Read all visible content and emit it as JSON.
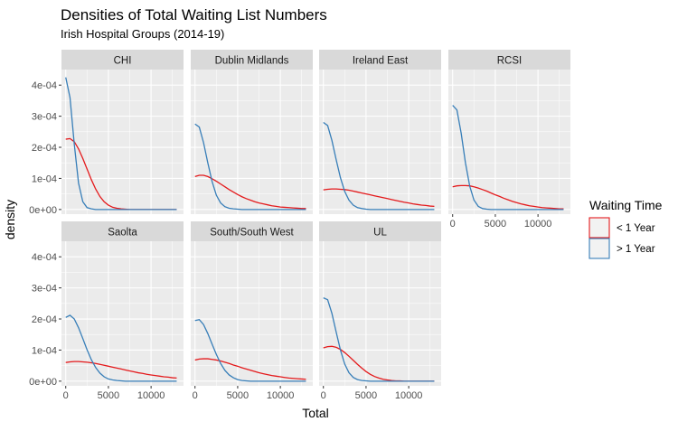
{
  "chart_data": {
    "type": "line",
    "title": "Densities of Total Waiting List Numbers",
    "subtitle": "Irish Hospital Groups (2014-19)",
    "xlabel": "Total",
    "ylabel": "density",
    "xlim": [
      -500,
      13800
    ],
    "ylim": [
      -1.5e-05,
      0.00045
    ],
    "x_ticks": [
      0,
      5000,
      10000
    ],
    "y_ticks": [
      0,
      0.0001,
      0.0002,
      0.0003,
      0.0004
    ],
    "y_tick_labels": [
      "0e+00",
      "1e-04",
      "2e-04",
      "3e-04",
      "4e-04"
    ],
    "grid": true,
    "legend": {
      "title": "Waiting Time",
      "position": "right",
      "entries": [
        {
          "label": "< 1 Year",
          "color": "#E41A1C"
        },
        {
          "label": "> 1 Year",
          "color": "#377EB8"
        }
      ]
    },
    "colors": {
      "panel_bg": "#EBEBEB",
      "strip_bg": "#D9D9D9",
      "grid": "#FFFFFF",
      "under_1_year": "#E41A1C",
      "over_1_year": "#377EB8"
    },
    "x": [
      0,
      500,
      1000,
      1500,
      2000,
      2500,
      3000,
      3500,
      4000,
      4500,
      5000,
      5500,
      6000,
      6500,
      7000,
      7500,
      8000,
      8500,
      9000,
      9500,
      10000,
      10500,
      11000,
      11500,
      12000,
      12500,
      13000
    ],
    "panels": [
      {
        "name": "CHI",
        "series": [
          {
            "name": "< 1 Year",
            "values": [
              0.000226,
              0.000228,
              0.000218,
              0.000195,
              0.000164,
              0.00013,
              9.6e-05,
              6.6e-05,
              4.2e-05,
              2.5e-05,
              1.4e-05,
              7e-06,
              4e-06,
              2e-06,
              1e-06,
              0,
              0,
              0,
              0,
              0,
              0,
              0,
              0,
              0,
              0,
              0,
              0
            ]
          },
          {
            "name": "> 1 Year",
            "values": [
              0.000425,
              0.00036,
              0.00021,
              8.5e-05,
              2.5e-05,
              6e-06,
              2e-06,
              0,
              0,
              0,
              0,
              0,
              0,
              0,
              0,
              0,
              0,
              0,
              0,
              0,
              0,
              0,
              0,
              0,
              0,
              0,
              0
            ]
          }
        ]
      },
      {
        "name": "Dublin Midlands",
        "series": [
          {
            "name": "< 1 Year",
            "values": [
              0.000106,
              0.00011,
              0.00011,
              0.000106,
              9.9e-05,
              9.1e-05,
              8.2e-05,
              7.3e-05,
              6.4e-05,
              5.6e-05,
              4.8e-05,
              4.1e-05,
              3.5e-05,
              3e-05,
              2.5e-05,
              2.1e-05,
              1.8e-05,
              1.5e-05,
              1.2e-05,
              1e-05,
              8e-06,
              7e-06,
              6e-06,
              5e-06,
              4e-06,
              3e-06,
              3e-06
            ]
          },
          {
            "name": "> 1 Year",
            "values": [
              0.000275,
              0.000265,
              0.000215,
              0.00015,
              9e-05,
              4.6e-05,
              2.1e-05,
              9e-06,
              4e-06,
              2e-06,
              1e-06,
              0,
              0,
              0,
              0,
              0,
              0,
              0,
              0,
              0,
              0,
              0,
              0,
              0,
              0,
              0,
              0
            ]
          }
        ]
      },
      {
        "name": "Ireland East",
        "series": [
          {
            "name": "< 1 Year",
            "values": [
              6.3e-05,
              6.5e-05,
              6.6e-05,
              6.6e-05,
              6.5e-05,
              6.4e-05,
              6.2e-05,
              5.9e-05,
              5.6e-05,
              5.3e-05,
              5e-05,
              4.7e-05,
              4.4e-05,
              4.1e-05,
              3.8e-05,
              3.5e-05,
              3.2e-05,
              2.9e-05,
              2.6e-05,
              2.3e-05,
              2.1e-05,
              1.8e-05,
              1.6e-05,
              1.4e-05,
              1.3e-05,
              1.1e-05,
              1e-05
            ]
          },
          {
            "name": "> 1 Year",
            "values": [
              0.00028,
              0.00027,
              0.000222,
              0.00016,
              0.000102,
              5.8e-05,
              3e-05,
              1.4e-05,
              6e-06,
              3e-06,
              1e-06,
              0,
              0,
              0,
              0,
              0,
              0,
              0,
              0,
              0,
              0,
              0,
              0,
              0,
              0,
              0,
              0
            ]
          }
        ]
      },
      {
        "name": "RCSI",
        "series": [
          {
            "name": "< 1 Year",
            "values": [
              7.3e-05,
              7.6e-05,
              7.7e-05,
              7.7e-05,
              7.6e-05,
              7.3e-05,
              6.9e-05,
              6.4e-05,
              5.9e-05,
              5.3e-05,
              4.7e-05,
              4.2e-05,
              3.6e-05,
              3.1e-05,
              2.6e-05,
              2.2e-05,
              1.8e-05,
              1.5e-05,
              1.2e-05,
              1e-05,
              8e-06,
              6e-06,
              5e-06,
              4e-06,
              3e-06,
              2e-06,
              2e-06
            ]
          },
          {
            "name": "> 1 Year",
            "values": [
              0.000335,
              0.00032,
              0.000245,
              0.00015,
              7.5e-05,
              3e-05,
              1e-05,
              3e-06,
              1e-06,
              0,
              0,
              0,
              0,
              0,
              0,
              0,
              0,
              0,
              0,
              0,
              0,
              0,
              0,
              0,
              0,
              0,
              0
            ]
          }
        ]
      },
      {
        "name": "Saolta",
        "series": [
          {
            "name": "< 1 Year",
            "values": [
              6e-05,
              6.2e-05,
              6.3e-05,
              6.3e-05,
              6.2e-05,
              6.1e-05,
              5.9e-05,
              5.7e-05,
              5.4e-05,
              5.1e-05,
              4.8e-05,
              4.5e-05,
              4.2e-05,
              3.9e-05,
              3.6e-05,
              3.3e-05,
              3e-05,
              2.7e-05,
              2.5e-05,
              2.2e-05,
              2e-05,
              1.8e-05,
              1.6e-05,
              1.4e-05,
              1.3e-05,
              1.1e-05,
              1e-05
            ]
          },
          {
            "name": "> 1 Year",
            "values": [
              0.000205,
              0.000212,
              0.0002,
              0.000172,
              0.000137,
              0.000101,
              6.9e-05,
              4.4e-05,
              2.6e-05,
              1.4e-05,
              7e-06,
              4e-06,
              2e-06,
              1e-06,
              0,
              0,
              0,
              0,
              0,
              0,
              0,
              0,
              0,
              0,
              0,
              0,
              0
            ]
          }
        ]
      },
      {
        "name": "South/South West",
        "series": [
          {
            "name": "< 1 Year",
            "values": [
              6.8e-05,
              7.1e-05,
              7.2e-05,
              7.2e-05,
              7e-05,
              6.8e-05,
              6.5e-05,
              6.1e-05,
              5.7e-05,
              5.2e-05,
              4.8e-05,
              4.3e-05,
              3.9e-05,
              3.5e-05,
              3.1e-05,
              2.7e-05,
              2.4e-05,
              2.1e-05,
              1.8e-05,
              1.6e-05,
              1.4e-05,
              1.2e-05,
              1e-05,
              9e-06,
              8e-06,
              7e-06,
              6e-06
            ]
          },
          {
            "name": "> 1 Year",
            "values": [
              0.000195,
              0.000198,
              0.000182,
              0.000153,
              0.000119,
              8.6e-05,
              5.7e-05,
              3.5e-05,
              2e-05,
              1.1e-05,
              5e-06,
              2e-06,
              1e-06,
              0,
              0,
              0,
              0,
              0,
              0,
              0,
              0,
              0,
              0,
              0,
              0,
              0,
              0
            ]
          }
        ]
      },
      {
        "name": "UL",
        "series": [
          {
            "name": "< 1 Year",
            "values": [
              0.000107,
              0.000111,
              0.000112,
              0.000109,
              0.000102,
              9.2e-05,
              8e-05,
              6.7e-05,
              5.4e-05,
              4.2e-05,
              3.1e-05,
              2.2e-05,
              1.5e-05,
              1e-05,
              6e-06,
              4e-06,
              2e-06,
              1e-06,
              1e-06,
              0,
              0,
              0,
              0,
              0,
              0,
              0,
              0
            ]
          },
          {
            "name": "> 1 Year",
            "values": [
              0.000268,
              0.000262,
              0.000218,
              0.000158,
              0.0001,
              5.5e-05,
              2.7e-05,
              1.2e-05,
              5e-06,
              2e-06,
              1e-06,
              0,
              0,
              0,
              0,
              0,
              0,
              0,
              0,
              0,
              0,
              0,
              0,
              0,
              0,
              0,
              0
            ]
          }
        ]
      }
    ]
  }
}
